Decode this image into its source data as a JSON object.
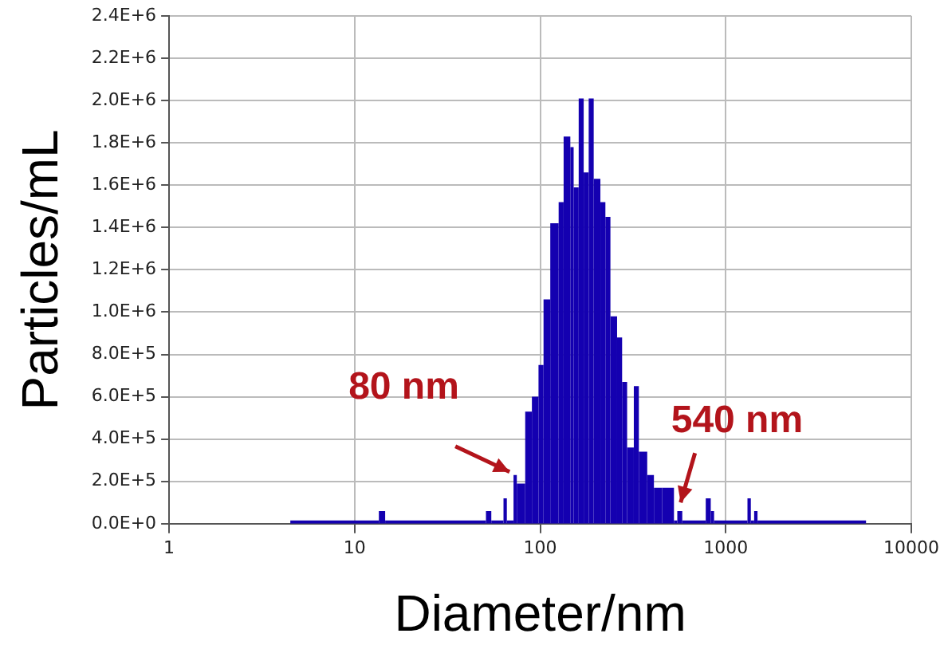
{
  "chart_data": {
    "type": "histogram",
    "xlabel": "Diameter/nm",
    "ylabel": "Particles/mL",
    "color": "#1400b0",
    "log": "x",
    "grid": true,
    "legend": false,
    "bins": [
      4.5,
      13.5,
      14.6,
      51,
      54.5,
      63.4,
      66.1,
      71.8,
      74.8,
      83.0,
      90.2,
      97.9,
      104.2,
      113.3,
      125.7,
      133.7,
      145.3,
      151.4,
      161.2,
      171.5,
      182.5,
      194.2,
      211.0,
      224.5,
      239.0,
      259.6,
      276.3,
      294.0,
      319.5,
      340.1,
      377.3,
      410.0,
      454.7,
      525.8,
      548,
      583,
      780,
      830,
      865,
      1309,
      1365,
      1422,
      1483,
      5700
    ],
    "values": [
      0,
      60000,
      0,
      60000,
      0,
      120000,
      0,
      230000,
      190000,
      530000,
      600000,
      750000,
      1060000,
      1420000,
      1520000,
      1830000,
      1780000,
      1590000,
      2010000,
      1660000,
      2010000,
      1630000,
      1520000,
      1450000,
      980000,
      880000,
      670000,
      360000,
      650000,
      340000,
      230000,
      170000,
      170000,
      0,
      60000,
      0,
      120000,
      60000,
      0,
      120000,
      0,
      60000,
      0
    ],
    "xlim": [
      1,
      10000
    ],
    "xticks": [
      1,
      10,
      100,
      1000,
      10000
    ],
    "ylim": [
      0,
      2400000
    ],
    "yticks": [
      {
        "value": 0,
        "label": "0.0E+0"
      },
      {
        "value": 200000,
        "label": "2.0E+5"
      },
      {
        "value": 400000,
        "label": "4.0E+5"
      },
      {
        "value": 600000,
        "label": "6.0E+5"
      },
      {
        "value": 800000,
        "label": "8.0E+5"
      },
      {
        "value": 1000000,
        "label": "1.0E+6"
      },
      {
        "value": 1200000,
        "label": "1.2E+6"
      },
      {
        "value": 1400000,
        "label": "1.4E+6"
      },
      {
        "value": 1600000,
        "label": "1.6E+6"
      },
      {
        "value": 1800000,
        "label": "1.8E+6"
      },
      {
        "value": 2000000,
        "label": "2.0E+6"
      },
      {
        "value": 2200000,
        "label": "2.2E+6"
      },
      {
        "value": 2400000,
        "label": "2.4E+6"
      }
    ],
    "annotations": [
      {
        "text": "80 nm",
        "x": 74,
        "y": 230000
      },
      {
        "text": "540 nm",
        "x": 560,
        "y": 70000
      }
    ]
  }
}
